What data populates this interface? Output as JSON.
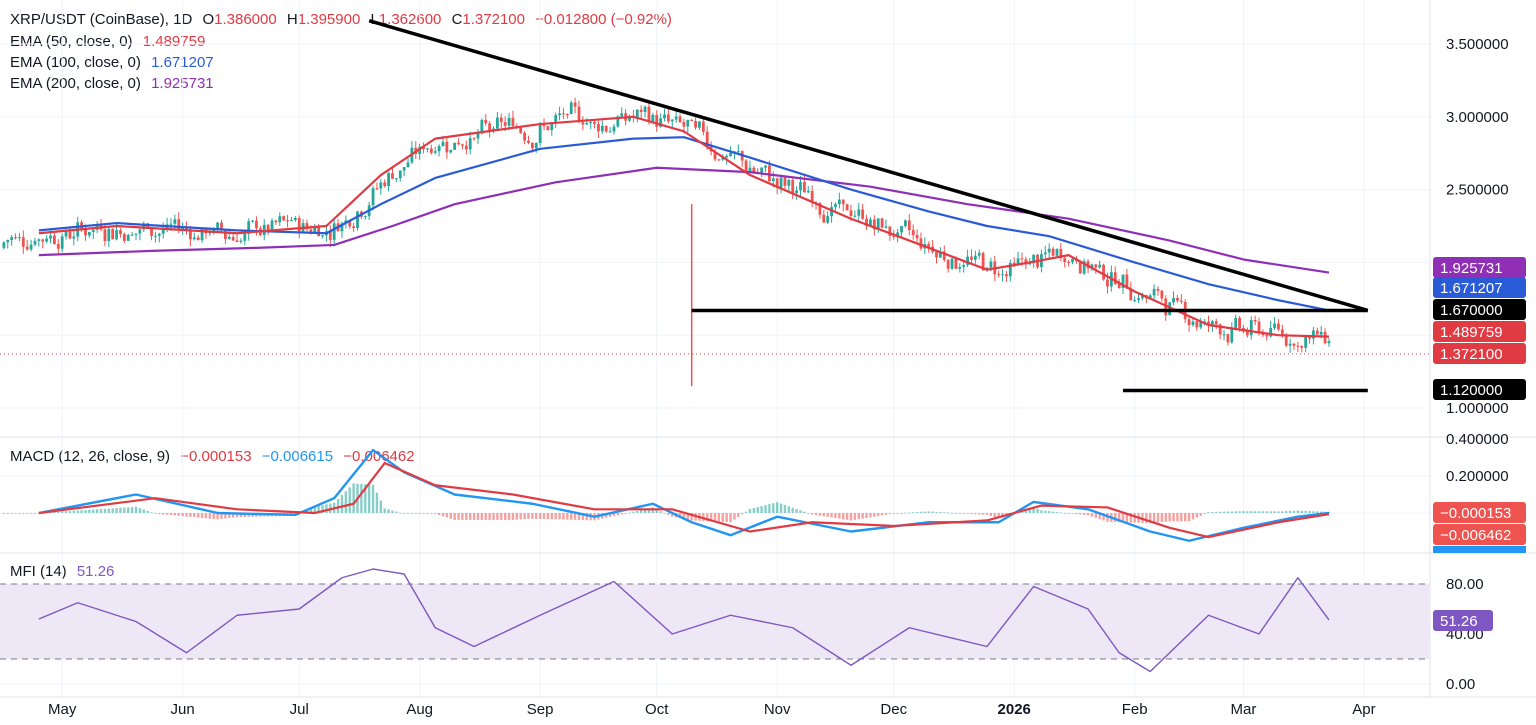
{
  "header": {
    "symbol": "XRP/USDT (CoinBase), 1D",
    "o_label": "O",
    "o_value": "1.386000",
    "h_label": "H",
    "h_value": "1.395900",
    "l_label": "L",
    "l_value": "1.362600",
    "c_label": "C",
    "c_value": "1.372100",
    "change": "−0.012800 (−0.92%)"
  },
  "ema_legend": [
    {
      "label": "EMA (50, close, 0)",
      "value": "1.489759",
      "color": "#e03a43"
    },
    {
      "label": "EMA (100, close, 0)",
      "value": "1.671207",
      "color": "#2a5bd7"
    },
    {
      "label": "EMA (200, close, 0)",
      "value": "1.925731",
      "color": "#8e2fb5"
    }
  ],
  "macd_legend": {
    "label": "MACD (12, 26, close, 9)",
    "v1": "−0.000153",
    "v2": "−0.006615",
    "v3": "−0.006462"
  },
  "mfi_legend": {
    "label": "MFI (14)",
    "value": "51.26"
  },
  "colors": {
    "up": "#26a69a",
    "down": "#ef5350",
    "ema50": "#e03a43",
    "ema100": "#2a5bd7",
    "ema200": "#8e2fb5",
    "macd": "#2196f3",
    "signal": "#e03a43",
    "mfi": "#7e57c2",
    "mfi_band": "#ede7f6"
  },
  "chart_data": [
    {
      "type": "candlestick",
      "panel": "price",
      "x_labels": [
        "May",
        "Jun",
        "Jul",
        "Aug",
        "Sep",
        "Oct",
        "Nov",
        "Dec",
        "2026",
        "Feb",
        "Mar",
        "Apr"
      ],
      "y_ticks": [
        "3.500000",
        "3.000000",
        "2.500000",
        "1.000000"
      ],
      "ylim": [
        0.9,
        3.7
      ],
      "series": [
        {
          "name": "EMA (50, close, 0)",
          "x": [
            "2025-04-25",
            "2025-05-15",
            "2025-06-15",
            "2025-07-08",
            "2025-07-22",
            "2025-08-05",
            "2025-09-01",
            "2025-09-25",
            "2025-10-08",
            "2025-10-25",
            "2025-11-20",
            "2025-12-10",
            "2025-12-25",
            "2026-01-05",
            "2026-01-15",
            "2026-02-01",
            "2026-02-20",
            "2026-03-10",
            "2026-03-23"
          ],
          "values": [
            2.2,
            2.25,
            2.2,
            2.25,
            2.6,
            2.85,
            2.95,
            3.0,
            2.9,
            2.6,
            2.3,
            2.1,
            1.95,
            2.0,
            2.05,
            1.8,
            1.57,
            1.5,
            1.49
          ]
        },
        {
          "name": "EMA (100, close, 0)",
          "x": [
            "2025-04-25",
            "2025-05-15",
            "2025-06-15",
            "2025-07-08",
            "2025-07-22",
            "2025-08-05",
            "2025-09-01",
            "2025-09-25",
            "2025-10-08",
            "2025-10-25",
            "2025-11-20",
            "2025-12-10",
            "2025-12-25",
            "2026-01-10",
            "2026-02-01",
            "2026-02-20",
            "2026-03-10",
            "2026-03-23"
          ],
          "values": [
            2.22,
            2.27,
            2.22,
            2.2,
            2.4,
            2.58,
            2.78,
            2.85,
            2.86,
            2.72,
            2.5,
            2.35,
            2.25,
            2.18,
            2.0,
            1.85,
            1.74,
            1.67
          ]
        },
        {
          "name": "EMA (200, close, 0)",
          "x": [
            "2025-04-25",
            "2025-05-25",
            "2025-06-20",
            "2025-07-10",
            "2025-07-25",
            "2025-08-10",
            "2025-09-05",
            "2025-10-01",
            "2025-10-25",
            "2025-11-25",
            "2025-12-20",
            "2026-01-15",
            "2026-02-10",
            "2026-03-01",
            "2026-03-23"
          ],
          "values": [
            2.05,
            2.08,
            2.1,
            2.12,
            2.25,
            2.4,
            2.55,
            2.65,
            2.62,
            2.52,
            2.4,
            2.3,
            2.15,
            2.02,
            1.93
          ]
        },
        {
          "name": "Trendline",
          "x": [
            "2025-07-19",
            "2026-04-02"
          ],
          "values": [
            3.66,
            1.67
          ]
        },
        {
          "name": "Support 1.67",
          "x": [
            "2025-10-10",
            "2026-04-02"
          ],
          "values": [
            1.67,
            1.67
          ]
        },
        {
          "name": "Support 1.12",
          "x": [
            "2026-01-29",
            "2026-04-02"
          ],
          "values": [
            1.12,
            1.12
          ]
        }
      ],
      "price_tags": [
        {
          "value": "1.925731",
          "y": 1.925731,
          "color": "#8e2fb5"
        },
        {
          "value": "1.671207",
          "y": 1.671207,
          "color": "#2a5bd7"
        },
        {
          "value": "1.670000",
          "y": 1.67,
          "color": "#000000"
        },
        {
          "value": "1.489759",
          "y": 1.489759,
          "color": "#e03a43"
        },
        {
          "value": "1.372100",
          "y": 1.3721,
          "color": "#e03a43"
        },
        {
          "value": "1.120000",
          "y": 1.12,
          "color": "#000000"
        }
      ]
    },
    {
      "type": "line",
      "panel": "macd",
      "y_ticks": [
        "0.400000",
        "0.200000"
      ],
      "ylim": [
        -0.2,
        0.42
      ],
      "series": [
        {
          "name": "MACD",
          "x": [
            "2025-04-25",
            "2025-05-20",
            "2025-06-10",
            "2025-06-30",
            "2025-07-10",
            "2025-07-20",
            "2025-07-28",
            "2025-08-10",
            "2025-08-30",
            "2025-09-15",
            "2025-09-30",
            "2025-10-10",
            "2025-10-20",
            "2025-11-01",
            "2025-11-20",
            "2025-12-10",
            "2025-12-28",
            "2026-01-06",
            "2026-01-20",
            "2026-02-05",
            "2026-02-15",
            "2026-03-01",
            "2026-03-15",
            "2026-03-23"
          ],
          "values": [
            0.0,
            0.1,
            0.0,
            -0.01,
            0.08,
            0.34,
            0.22,
            0.1,
            0.05,
            -0.02,
            0.05,
            -0.05,
            -0.12,
            -0.02,
            -0.1,
            -0.05,
            -0.05,
            0.06,
            0.02,
            -0.1,
            -0.15,
            -0.08,
            -0.02,
            0.0
          ]
        },
        {
          "name": "Signal",
          "x": [
            "2025-04-25",
            "2025-05-25",
            "2025-06-15",
            "2025-07-05",
            "2025-07-15",
            "2025-07-23",
            "2025-08-05",
            "2025-08-25",
            "2025-09-15",
            "2025-10-05",
            "2025-10-25",
            "2025-11-10",
            "2025-12-01",
            "2025-12-25",
            "2026-01-08",
            "2026-01-25",
            "2026-02-10",
            "2026-02-20",
            "2026-03-10",
            "2026-03-23"
          ],
          "values": [
            0.0,
            0.08,
            0.02,
            0.0,
            0.05,
            0.27,
            0.15,
            0.1,
            0.02,
            0.02,
            -0.1,
            -0.05,
            -0.07,
            -0.04,
            0.04,
            0.03,
            -0.08,
            -0.13,
            -0.05,
            -0.006
          ]
        }
      ]
    },
    {
      "type": "line",
      "panel": "mfi",
      "y_ticks": [
        "80.00",
        "40.00",
        "0.00"
      ],
      "ylim": [
        0,
        100
      ],
      "bands": [
        20,
        80
      ],
      "series": [
        {
          "name": "MFI (14)",
          "x": [
            "2025-04-25",
            "2025-05-05",
            "2025-05-20",
            "2025-06-02",
            "2025-06-15",
            "2025-07-01",
            "2025-07-12",
            "2025-07-20",
            "2025-07-28",
            "2025-08-05",
            "2025-08-15",
            "2025-09-01",
            "2025-09-20",
            "2025-10-05",
            "2025-10-20",
            "2025-11-05",
            "2025-11-20",
            "2025-12-05",
            "2025-12-25",
            "2026-01-06",
            "2026-01-20",
            "2026-01-28",
            "2026-02-05",
            "2026-02-20",
            "2026-03-05",
            "2026-03-15",
            "2026-03-23"
          ],
          "values": [
            52,
            65,
            50,
            25,
            55,
            60,
            85,
            92,
            88,
            45,
            30,
            55,
            82,
            40,
            55,
            45,
            15,
            45,
            30,
            78,
            60,
            25,
            10,
            55,
            40,
            85,
            51.26
          ]
        }
      ]
    }
  ]
}
